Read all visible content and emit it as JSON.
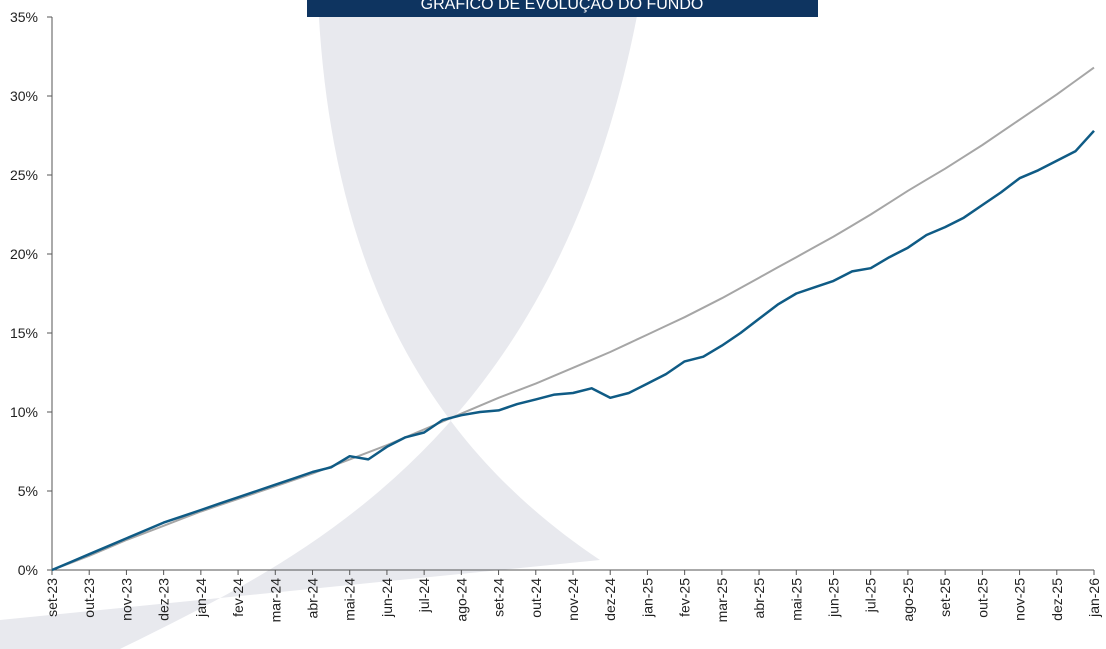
{
  "chart_data": {
    "type": "line",
    "title": "GRÁFICO DE EVOLUÇÃO DO FUNDO",
    "categories": [
      "set-23",
      null,
      "out-23",
      null,
      "nov-23",
      null,
      "dez-23",
      null,
      "jan-24",
      null,
      "fev-24",
      null,
      "mar-24",
      null,
      "abr-24",
      null,
      "mai-24",
      null,
      "jun-24",
      null,
      "jul-24",
      null,
      "ago-24",
      null,
      "set-24",
      null,
      "out-24",
      null,
      "nov-24",
      null,
      "dez-24",
      null,
      "jan-25",
      null,
      "fev-25",
      null,
      "mar-25",
      null,
      "abr-25",
      null,
      "mai-25",
      null,
      "jun-25",
      null,
      "jul-25",
      null,
      "ago-25",
      null,
      "set-25",
      null,
      "out-25",
      null,
      "nov-25",
      null,
      "dez-25",
      null,
      "jan-26"
    ],
    "series": [
      {
        "color": "#a6a6a6",
        "values": [
          0,
          0.45,
          0.9,
          1.4,
          1.9,
          2.35,
          2.8,
          3.25,
          3.7,
          4.1,
          4.5,
          4.9,
          5.3,
          5.7,
          6.1,
          6.55,
          7.0,
          7.45,
          7.9,
          8.4,
          8.9,
          9.4,
          9.9,
          10.4,
          10.9,
          11.35,
          11.8,
          12.3,
          12.8,
          13.3,
          13.8,
          14.35,
          14.9,
          15.45,
          16.0,
          16.6,
          17.2,
          17.85,
          18.5,
          19.15,
          19.8,
          20.45,
          21.1,
          21.8,
          22.5,
          23.25,
          24.0,
          24.7,
          25.4,
          26.15,
          26.9,
          27.7,
          28.5,
          29.3,
          30.1,
          30.95,
          31.8
        ]
      },
      {
        "color": "#0f5b85",
        "values": [
          0,
          0.5,
          1.0,
          1.5,
          2.0,
          2.5,
          3.0,
          3.4,
          3.8,
          4.2,
          4.6,
          5.0,
          5.4,
          5.8,
          6.2,
          6.5,
          7.2,
          7.0,
          7.8,
          8.4,
          8.7,
          9.5,
          9.8,
          10.0,
          10.1,
          10.5,
          10.8,
          11.1,
          11.2,
          11.5,
          10.9,
          11.2,
          11.8,
          12.4,
          13.2,
          13.5,
          14.2,
          15.0,
          15.9,
          16.8,
          17.5,
          17.9,
          18.3,
          18.9,
          19.1,
          19.8,
          20.4,
          21.2,
          21.7,
          22.3,
          23.1,
          23.9,
          24.8,
          25.3,
          25.9,
          26.5,
          27.8
        ]
      }
    ],
    "ylim": [
      0,
      35
    ],
    "yticks": [
      {
        "value": 0,
        "label": "0%"
      },
      {
        "value": 5,
        "label": "5%"
      },
      {
        "value": 10,
        "label": "10%"
      },
      {
        "value": 15,
        "label": "15%"
      },
      {
        "value": 20,
        "label": "20%"
      },
      {
        "value": 25,
        "label": "25%"
      },
      {
        "value": 30,
        "label": "30%"
      },
      {
        "value": 35,
        "label": "35%"
      }
    ]
  }
}
